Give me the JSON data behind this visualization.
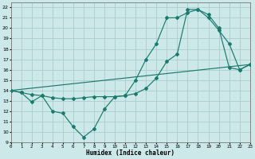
{
  "xlabel": "Humidex (Indice chaleur)",
  "line_color": "#1a7a6e",
  "bg_color": "#cce8e8",
  "grid_color": "#aacccc",
  "line1_x": [
    0,
    1,
    2,
    3,
    4,
    5,
    6,
    7,
    8,
    9,
    10,
    11,
    12,
    13,
    14,
    15,
    16,
    17,
    18,
    19,
    20,
    21,
    22,
    23
  ],
  "line1_y": [
    14.0,
    13.8,
    12.9,
    13.5,
    12.0,
    11.8,
    10.5,
    9.5,
    10.3,
    12.2,
    13.4,
    13.5,
    15.0,
    17.0,
    18.5,
    21.0,
    21.0,
    21.5,
    21.8,
    21.0,
    19.8,
    18.5,
    16.0,
    16.5
  ],
  "line2_x": [
    0,
    1,
    2,
    3,
    4,
    5,
    6,
    7,
    8,
    9,
    10,
    11,
    12,
    13,
    14,
    15,
    16,
    17,
    18,
    19,
    20,
    21,
    22,
    23
  ],
  "line2_y": [
    14.0,
    13.8,
    13.6,
    13.5,
    13.3,
    13.2,
    13.2,
    13.3,
    13.4,
    13.4,
    13.4,
    13.5,
    13.7,
    14.2,
    15.2,
    16.8,
    17.5,
    21.8,
    21.8,
    21.3,
    20.0,
    16.2,
    16.0,
    16.5
  ],
  "line3_x": [
    0,
    23
  ],
  "line3_y": [
    14.0,
    16.5
  ],
  "xlim": [
    0,
    23
  ],
  "ylim": [
    9,
    22.5
  ],
  "xticks": [
    0,
    1,
    2,
    3,
    4,
    5,
    6,
    7,
    8,
    9,
    10,
    11,
    12,
    13,
    14,
    15,
    16,
    17,
    18,
    19,
    20,
    21,
    22,
    23
  ],
  "yticks": [
    9,
    10,
    11,
    12,
    13,
    14,
    15,
    16,
    17,
    18,
    19,
    20,
    21,
    22
  ]
}
